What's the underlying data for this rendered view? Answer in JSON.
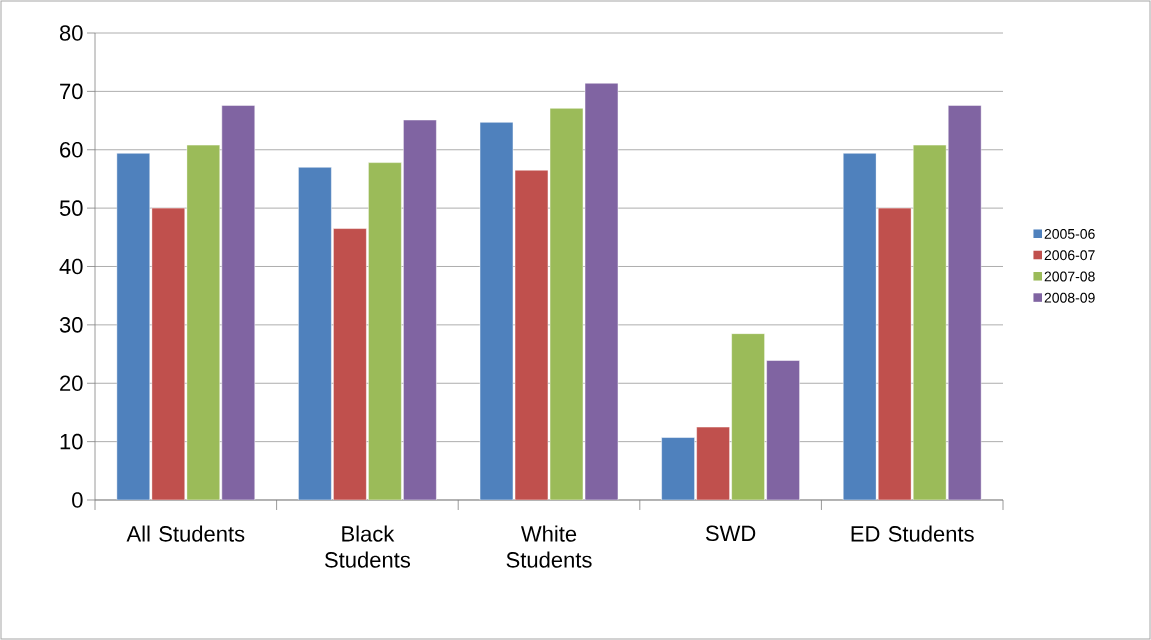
{
  "chart_data": {
    "type": "bar",
    "categories": [
      "All Students",
      "Black Students",
      "White Students",
      "SWD",
      "ED Students"
    ],
    "series": [
      {
        "name": "2005-06",
        "color": "#4f81bd",
        "values": [
          59.4,
          57.0,
          64.7,
          10.7,
          59.4
        ]
      },
      {
        "name": "2006-07",
        "color": "#c0504d",
        "values": [
          50.0,
          46.5,
          56.5,
          12.5,
          50.0
        ]
      },
      {
        "name": "2007-08",
        "color": "#9bbb59",
        "values": [
          60.8,
          57.8,
          67.1,
          28.5,
          60.8
        ]
      },
      {
        "name": "2008-09",
        "color": "#8064a2",
        "values": [
          67.6,
          65.1,
          71.4,
          23.9,
          67.6
        ]
      }
    ],
    "ylim": [
      0,
      80
    ],
    "yticks": [
      0,
      10,
      20,
      30,
      40,
      50,
      60,
      70,
      80
    ],
    "grid": "y",
    "legend": "right"
  }
}
